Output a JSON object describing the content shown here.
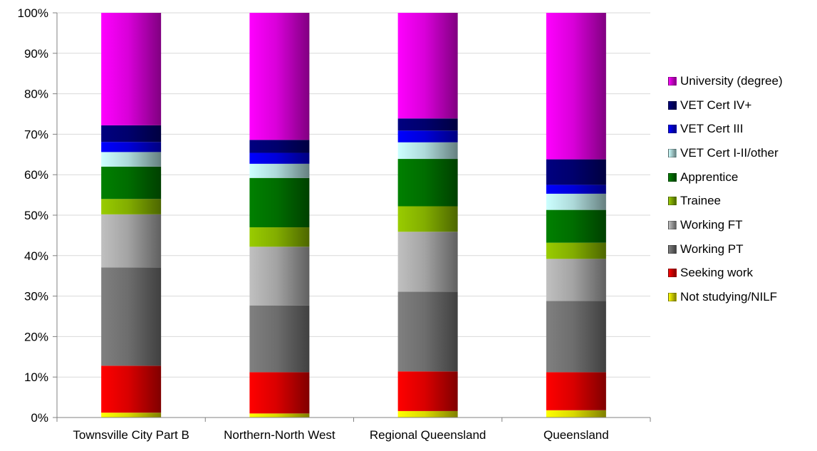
{
  "chart_data": {
    "type": "bar",
    "stacked": true,
    "percent": true,
    "title": "",
    "xlabel": "",
    "ylabel": "",
    "ylim": [
      0,
      100
    ],
    "yticks": [
      "0%",
      "10%",
      "20%",
      "30%",
      "40%",
      "50%",
      "60%",
      "70%",
      "80%",
      "90%",
      "100%"
    ],
    "grid": true,
    "legend_position": "right",
    "categories": [
      "Townsville City Part B",
      "Northern-North West",
      "Regional Queensland",
      "Queensland"
    ],
    "series": [
      {
        "name": "Not studying/NILF",
        "color": "#ffff00",
        "values": [
          1.2,
          1.0,
          1.6,
          1.8
        ]
      },
      {
        "name": "Seeking work",
        "color": "#ff0000",
        "values": [
          11.6,
          10.2,
          9.8,
          9.4
        ]
      },
      {
        "name": "Working PT",
        "color": "#808080",
        "values": [
          24.3,
          16.5,
          19.7,
          17.6
        ]
      },
      {
        "name": "Working FT",
        "color": "#c0c0c0",
        "values": [
          13.1,
          14.5,
          14.8,
          10.4
        ]
      },
      {
        "name": "Trainee",
        "color": "#99cc00",
        "values": [
          3.8,
          4.8,
          6.3,
          4.0
        ]
      },
      {
        "name": "Apprentice",
        "color": "#008000",
        "values": [
          8.0,
          12.2,
          11.7,
          8.1
        ]
      },
      {
        "name": "VET Cert I-II/other",
        "color": "#ccffff",
        "values": [
          3.6,
          3.5,
          4.1,
          4.0
        ]
      },
      {
        "name": "VET Cert III",
        "color": "#0000ff",
        "values": [
          2.5,
          2.7,
          2.9,
          2.2
        ]
      },
      {
        "name": "VET Cert IV+",
        "color": "#000080",
        "values": [
          4.1,
          3.2,
          3.0,
          6.3
        ]
      },
      {
        "name": "University (degree)",
        "color": "#ff00ff",
        "values": [
          27.8,
          31.4,
          26.1,
          36.2
        ]
      }
    ]
  }
}
